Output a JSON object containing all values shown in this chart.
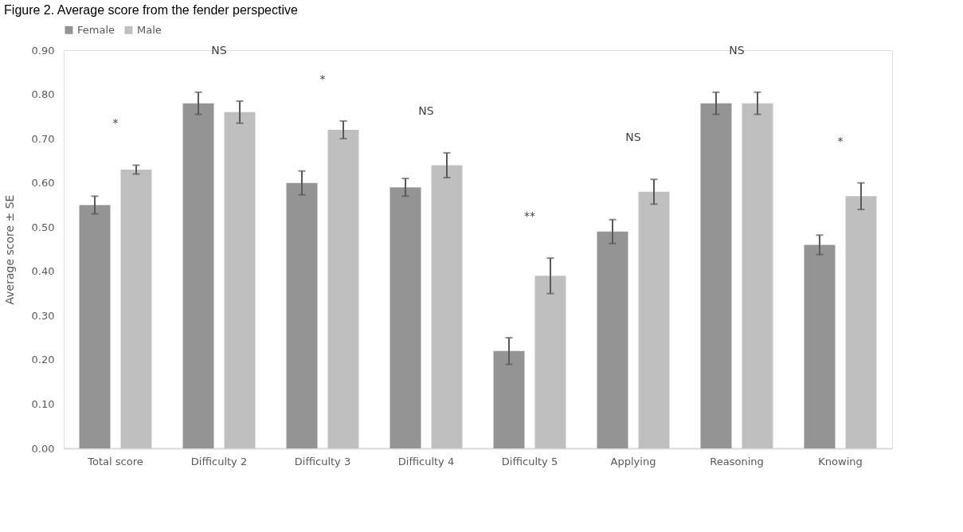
{
  "chart_data": {
    "type": "bar",
    "title": "Figure 2. Average score from the fender perspective",
    "ylabel": "Average score ± SE",
    "categories": [
      "Total score",
      "Difficulty 2",
      "Difficulty 3",
      "Difficulty 4",
      "Difficulty 5",
      "Applying",
      "Reasoning",
      "Knowing"
    ],
    "series": [
      {
        "name": "Female",
        "color": "#949494",
        "values": [
          0.55,
          0.78,
          0.6,
          0.59,
          0.22,
          0.49,
          0.78,
          0.46
        ],
        "errors": [
          0.02,
          0.025,
          0.027,
          0.02,
          0.03,
          0.027,
          0.025,
          0.022
        ]
      },
      {
        "name": "Male",
        "color": "#bfbfbf",
        "values": [
          0.63,
          0.76,
          0.72,
          0.64,
          0.39,
          0.58,
          0.78,
          0.57
        ],
        "errors": [
          0.01,
          0.025,
          0.02,
          0.028,
          0.04,
          0.028,
          0.025,
          0.03
        ]
      }
    ],
    "ylim": [
      0,
      0.9
    ],
    "yticks": [
      {
        "value": 0,
        "label": "0.00"
      },
      {
        "value": 0.1,
        "label": "0.10"
      },
      {
        "value": 0.2,
        "label": "0.20"
      },
      {
        "value": 0.3,
        "label": "0.30"
      },
      {
        "value": 0.4,
        "label": "0.40"
      },
      {
        "value": 0.5,
        "label": "0.50"
      },
      {
        "value": 0.6,
        "label": "0.60"
      },
      {
        "value": 0.7,
        "label": "0.70"
      },
      {
        "value": 0.8,
        "label": "0.80"
      },
      {
        "value": 0.9,
        "label": "0.90"
      }
    ],
    "annotations": [
      "*",
      "NS",
      "*",
      "NS",
      "**",
      "NS",
      "NS",
      "*"
    ],
    "legend": "top",
    "grid": false
  }
}
